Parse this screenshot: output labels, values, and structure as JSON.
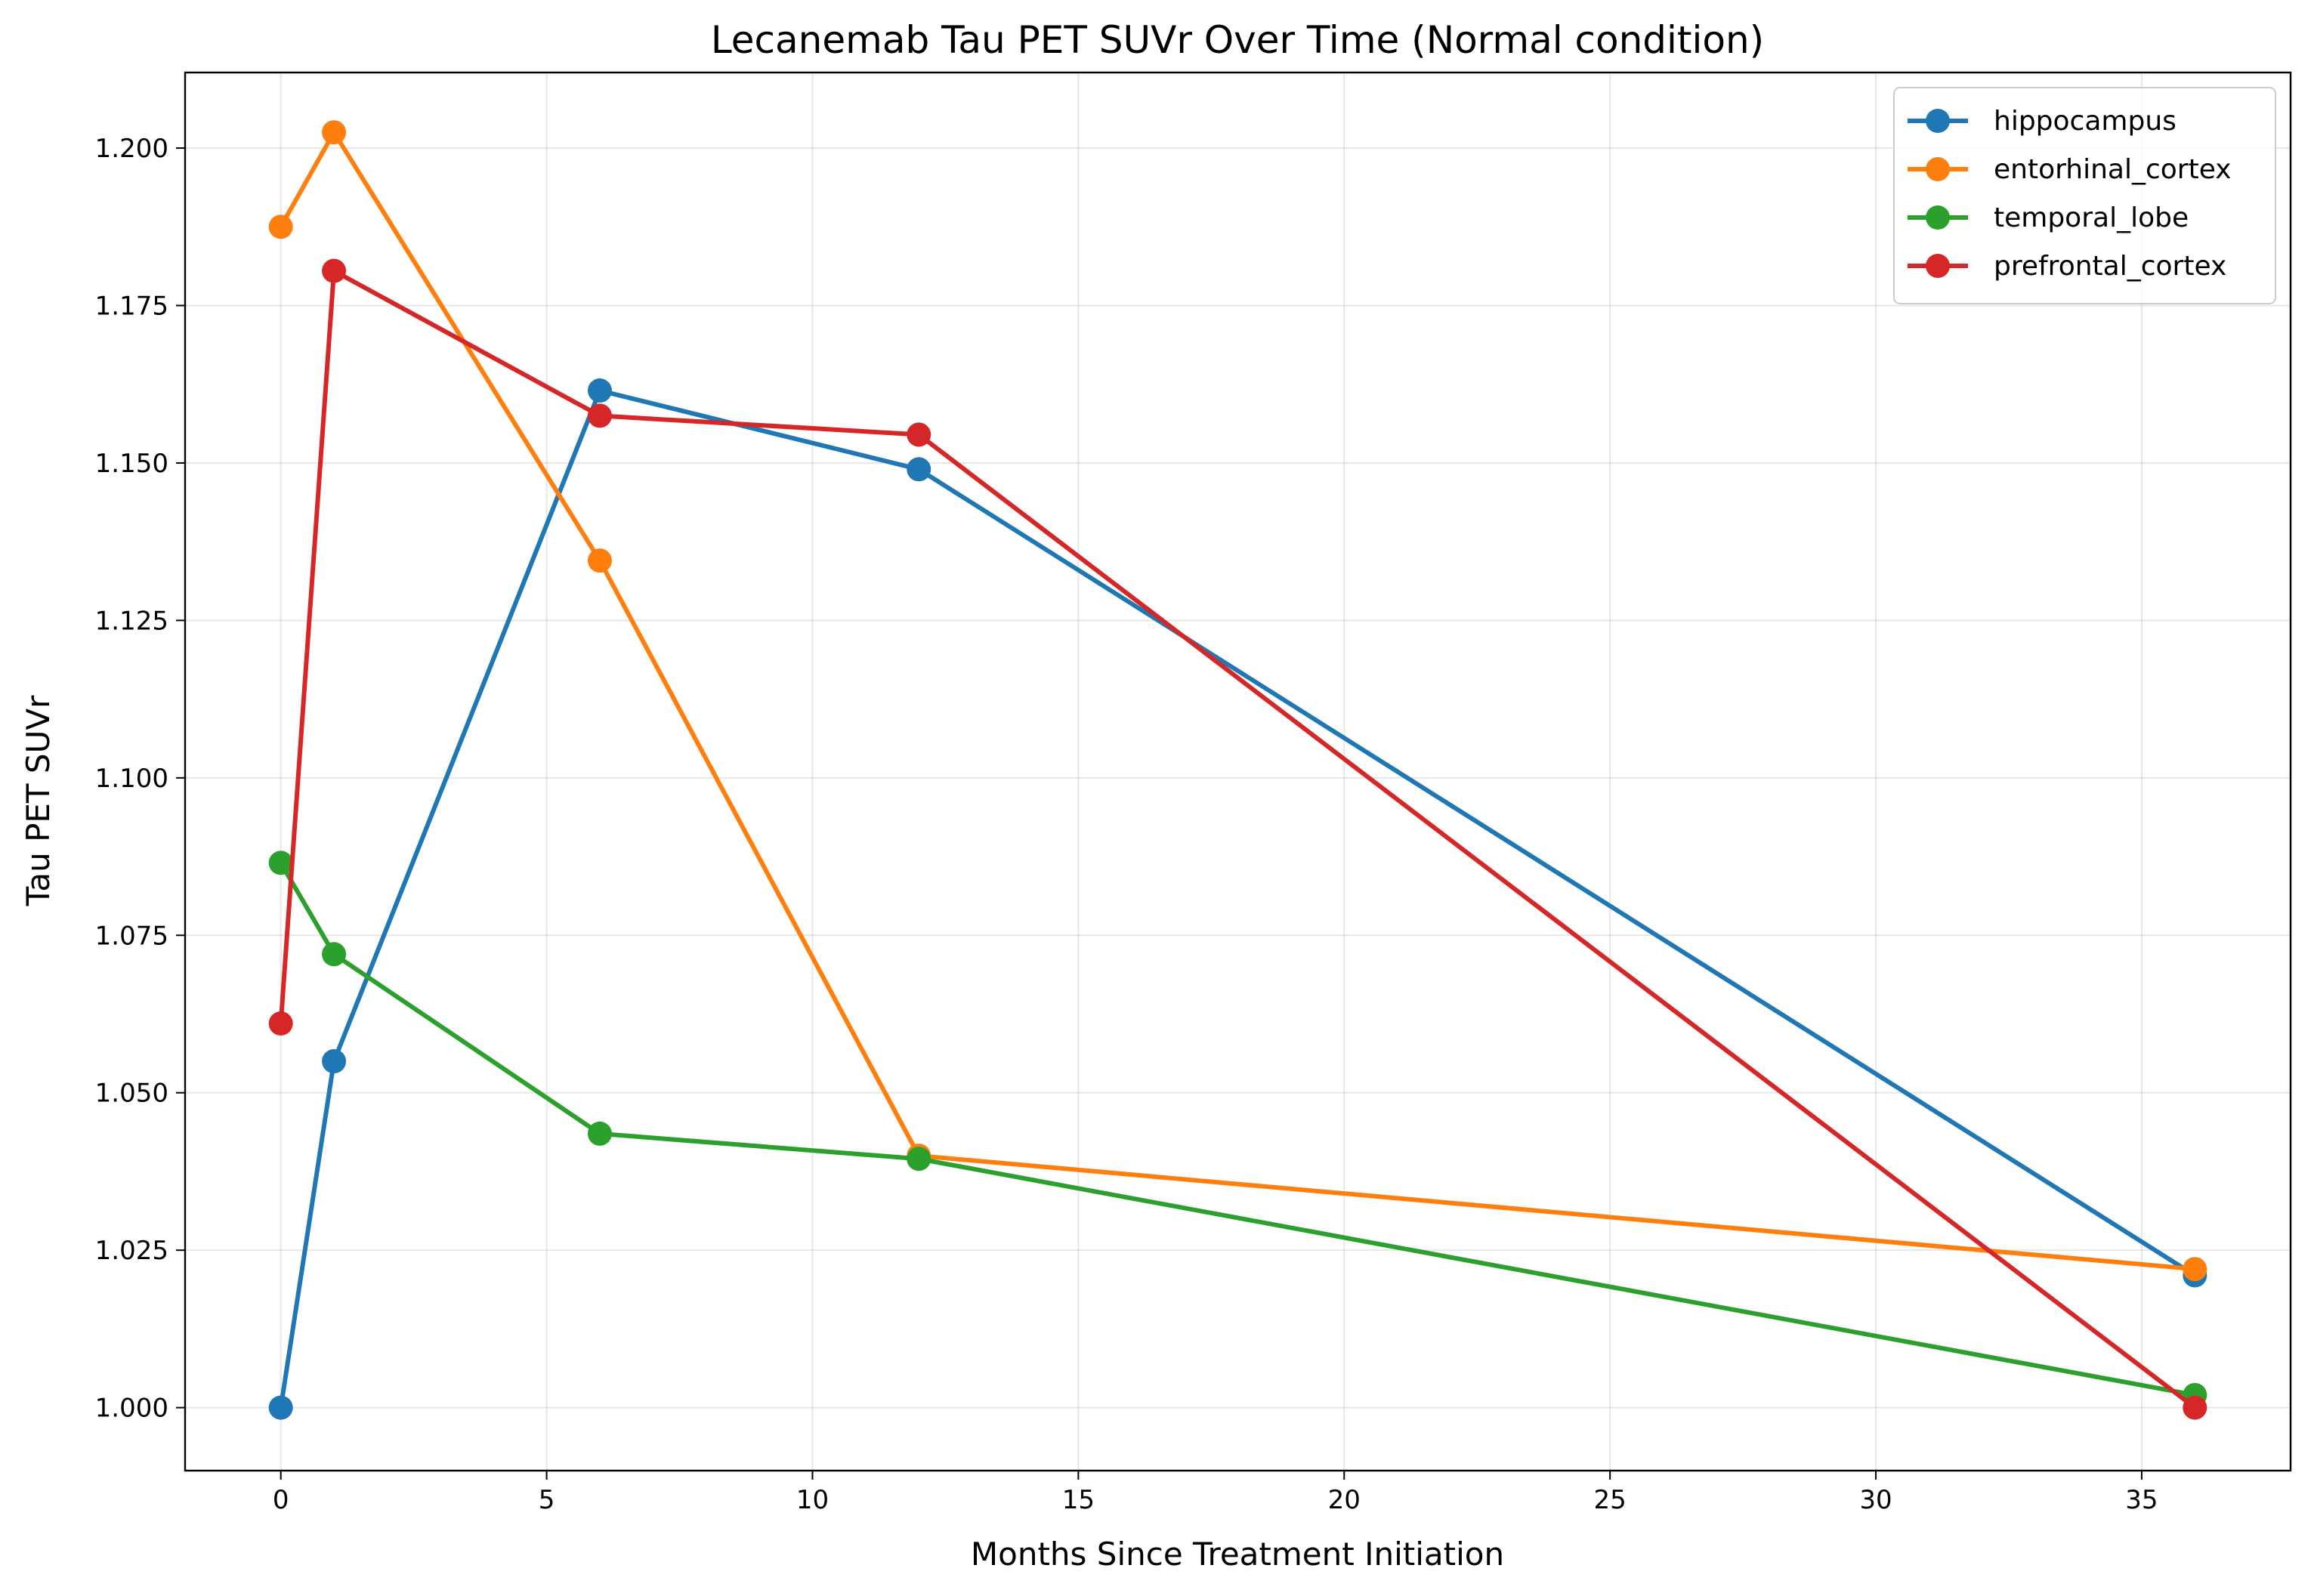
{
  "chart_data": {
    "type": "line",
    "title": "Lecanemab Tau PET SUVr Over Time (Normal condition)",
    "xlabel": "Months Since Treatment Initiation",
    "ylabel": "Tau PET SUVr",
    "x": [
      0,
      1,
      6,
      12,
      36
    ],
    "xlim": [
      -1.8,
      37.8
    ],
    "ylim": [
      0.99,
      1.212
    ],
    "xticks": [
      0,
      5,
      10,
      15,
      20,
      25,
      30,
      35
    ],
    "xtick_labels": [
      "0",
      "5",
      "10",
      "15",
      "20",
      "25",
      "30",
      "35"
    ],
    "yticks": [
      1.0,
      1.025,
      1.05,
      1.075,
      1.1,
      1.125,
      1.15,
      1.175,
      1.2
    ],
    "ytick_labels": [
      "1.000",
      "1.025",
      "1.050",
      "1.075",
      "1.100",
      "1.125",
      "1.150",
      "1.175",
      "1.200"
    ],
    "grid": true,
    "legend_position": "top-right",
    "series": [
      {
        "name": "hippocampus",
        "color": "#1f77b4",
        "values": [
          1.0,
          1.055,
          1.1615,
          1.149,
          1.021
        ]
      },
      {
        "name": "entorhinal_cortex",
        "color": "#ff7f0e",
        "values": [
          1.1875,
          1.2025,
          1.1345,
          1.04,
          1.022
        ]
      },
      {
        "name": "temporal_lobe",
        "color": "#2ca02c",
        "values": [
          1.0865,
          1.072,
          1.0435,
          1.0395,
          1.002
        ]
      },
      {
        "name": "prefrontal_cortex",
        "color": "#d62728",
        "values": [
          1.061,
          1.1805,
          1.1575,
          1.1545,
          1.0
        ]
      }
    ]
  }
}
